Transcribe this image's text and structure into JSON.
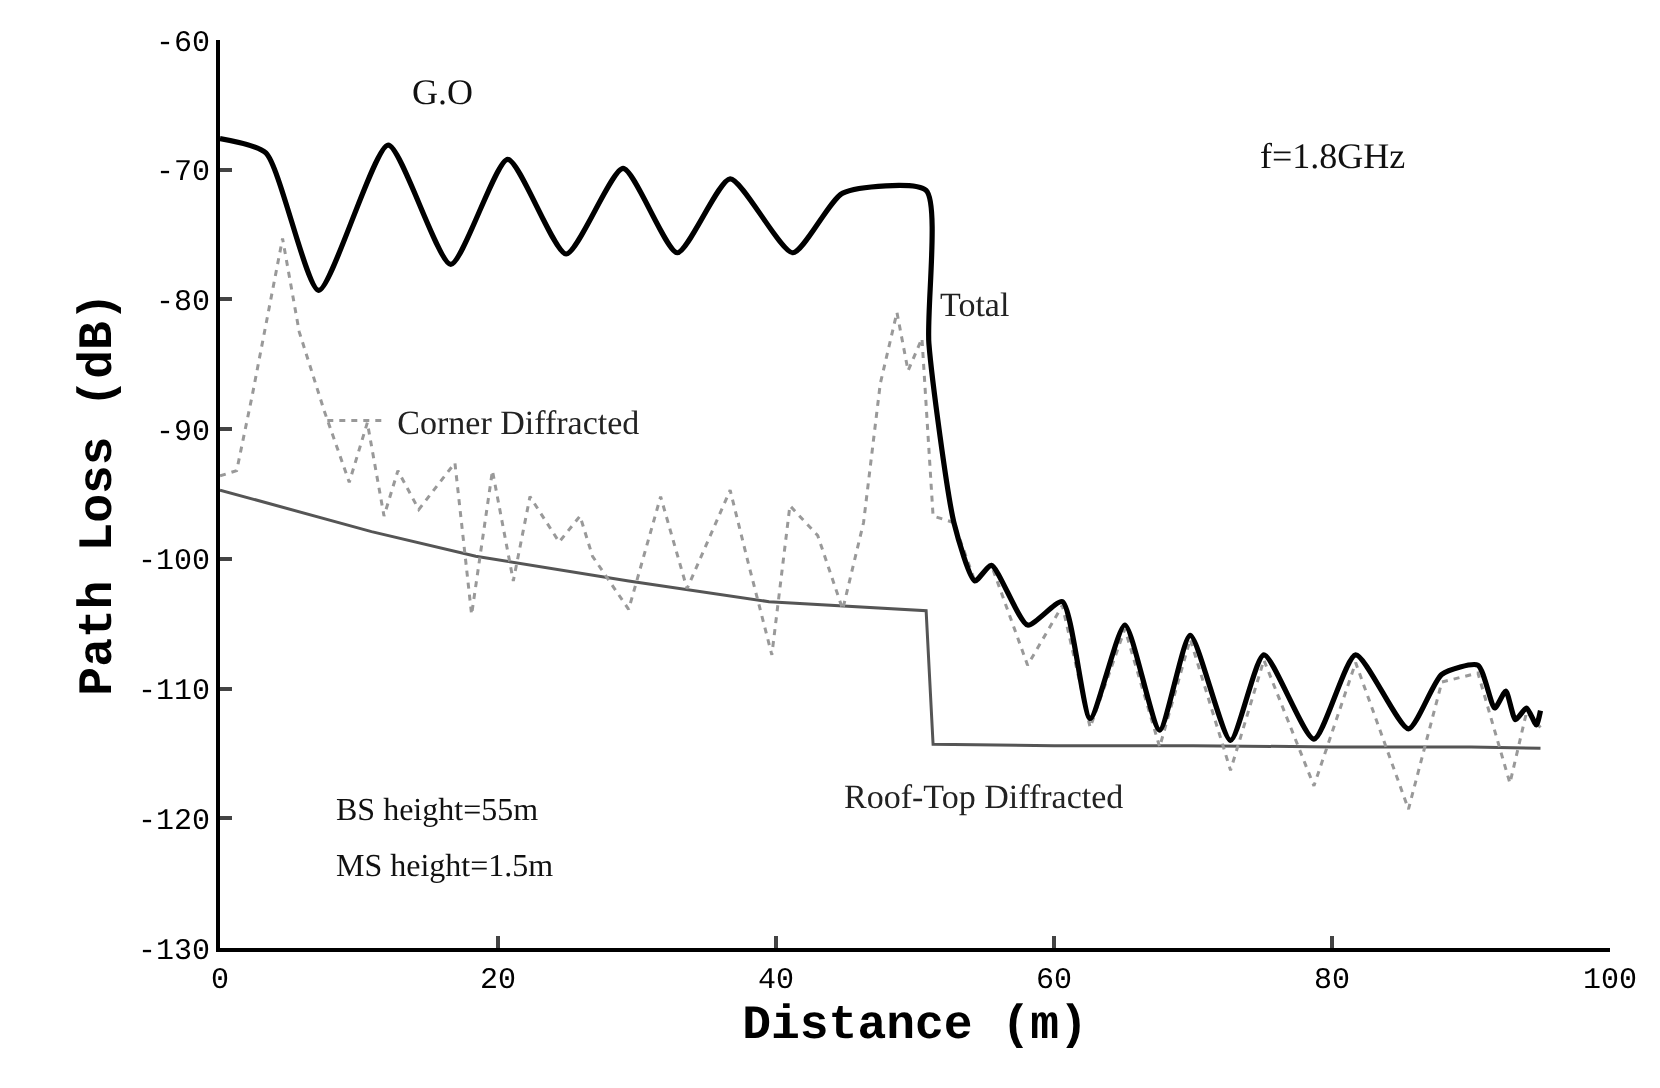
{
  "chart_data": {
    "type": "line",
    "xlabel": "Distance (m)",
    "ylabel": "Path Loss (dB)",
    "xlim": [
      0,
      100
    ],
    "xticks": [
      0,
      20,
      40,
      60,
      80,
      100
    ],
    "ylim": [
      -130,
      -60
    ],
    "yticks": [
      -130,
      -120,
      -110,
      -100,
      -90,
      -80,
      -70,
      -60
    ],
    "legend": "left",
    "marker": "none",
    "series": [
      {
        "name": "Roof-Top Diffracted",
        "color": "#555555",
        "line_style": "solid",
        "x": [
          0,
          10.9,
          18.4,
          29.4,
          39.5,
          50.8,
          51.3,
          60,
          70,
          80,
          90,
          95
        ],
        "values": [
          -94.7,
          -97.9,
          -99.8,
          -101.7,
          -103.3,
          -104.0,
          -114.3,
          -114.4,
          -114.4,
          -114.5,
          -114.5,
          -114.6
        ]
      },
      {
        "name": "Corner Diffracted",
        "color": "#999999",
        "line_style": "dotted",
        "x": [
          0,
          1.2,
          2.3,
          4.5,
          5.7,
          7.5,
          9.3,
          10.6,
          11.8,
          12.8,
          14.3,
          16.9,
          18.1,
          19.6,
          21.1,
          22.3,
          24.4,
          25.9,
          26.8,
          29.4,
          31.7,
          33.6,
          36.7,
          38,
          39.7,
          41,
          43,
          44.8,
          46.3,
          47.5,
          48.7,
          49.5,
          50.5,
          51.3,
          52.8,
          54.3,
          55.5,
          58.1,
          60.6,
          62.6,
          65.1,
          67.6,
          69.8,
          72.7,
          75.1,
          78.7,
          81.7,
          85.5,
          87.9,
          90.5,
          92.8,
          94,
          95
        ],
        "values": [
          -93.6,
          -93.2,
          -87.5,
          -75.3,
          -82.5,
          -88.6,
          -94.1,
          -89.5,
          -96.7,
          -93.2,
          -96.2,
          -92.6,
          -104.3,
          -93.2,
          -101.7,
          -95.2,
          -98.7,
          -96.7,
          -99.8,
          -103.9,
          -95.2,
          -102.3,
          -94.7,
          -100.3,
          -107.4,
          -95.9,
          -98.2,
          -103.9,
          -97.2,
          -86.5,
          -81,
          -85.5,
          -83,
          -96.7,
          -97.2,
          -101.7,
          -100.5,
          -108.2,
          -103.6,
          -113.0,
          -105.4,
          -114.5,
          -106.2,
          -116.3,
          -107.8,
          -117.5,
          -108.0,
          -119.3,
          -109.5,
          -108.8,
          -117.3,
          -111.8,
          -113
        ]
      },
      {
        "name": "Total",
        "color": "#000000",
        "line_style": "solid",
        "x": [
          0,
          3.3,
          7.1,
          12.1,
          16.6,
          20.7,
          24.9,
          29.0,
          32.9,
          36.7,
          41.2,
          44.8,
          50.8,
          51.0,
          52.8,
          54.3,
          55.5,
          58.1,
          60.6,
          62.6,
          65.1,
          67.6,
          69.8,
          72.7,
          75.1,
          78.7,
          81.7,
          85.5,
          87.9,
          90.5,
          91.7,
          92.5,
          93.2,
          94,
          94.7,
          95
        ],
        "values": [
          -67.6,
          -68.7,
          -79.3,
          -68.1,
          -77.3,
          -69.2,
          -76.5,
          -69.9,
          -76.4,
          -70.7,
          -76.4,
          -71.8,
          -71.6,
          -83.4,
          -97.2,
          -101.7,
          -100.5,
          -105.1,
          -103.3,
          -112.3,
          -105.1,
          -113.2,
          -105.9,
          -114.0,
          -107.4,
          -113.9,
          -107.4,
          -113.1,
          -108.9,
          -108.2,
          -111.5,
          -110.2,
          -112.4,
          -111.5,
          -112.8,
          -111.7
        ]
      }
    ],
    "annotations": [
      "G.O",
      "f=1.8GHz",
      "BS height=55m",
      "MS height=1.5m"
    ]
  }
}
